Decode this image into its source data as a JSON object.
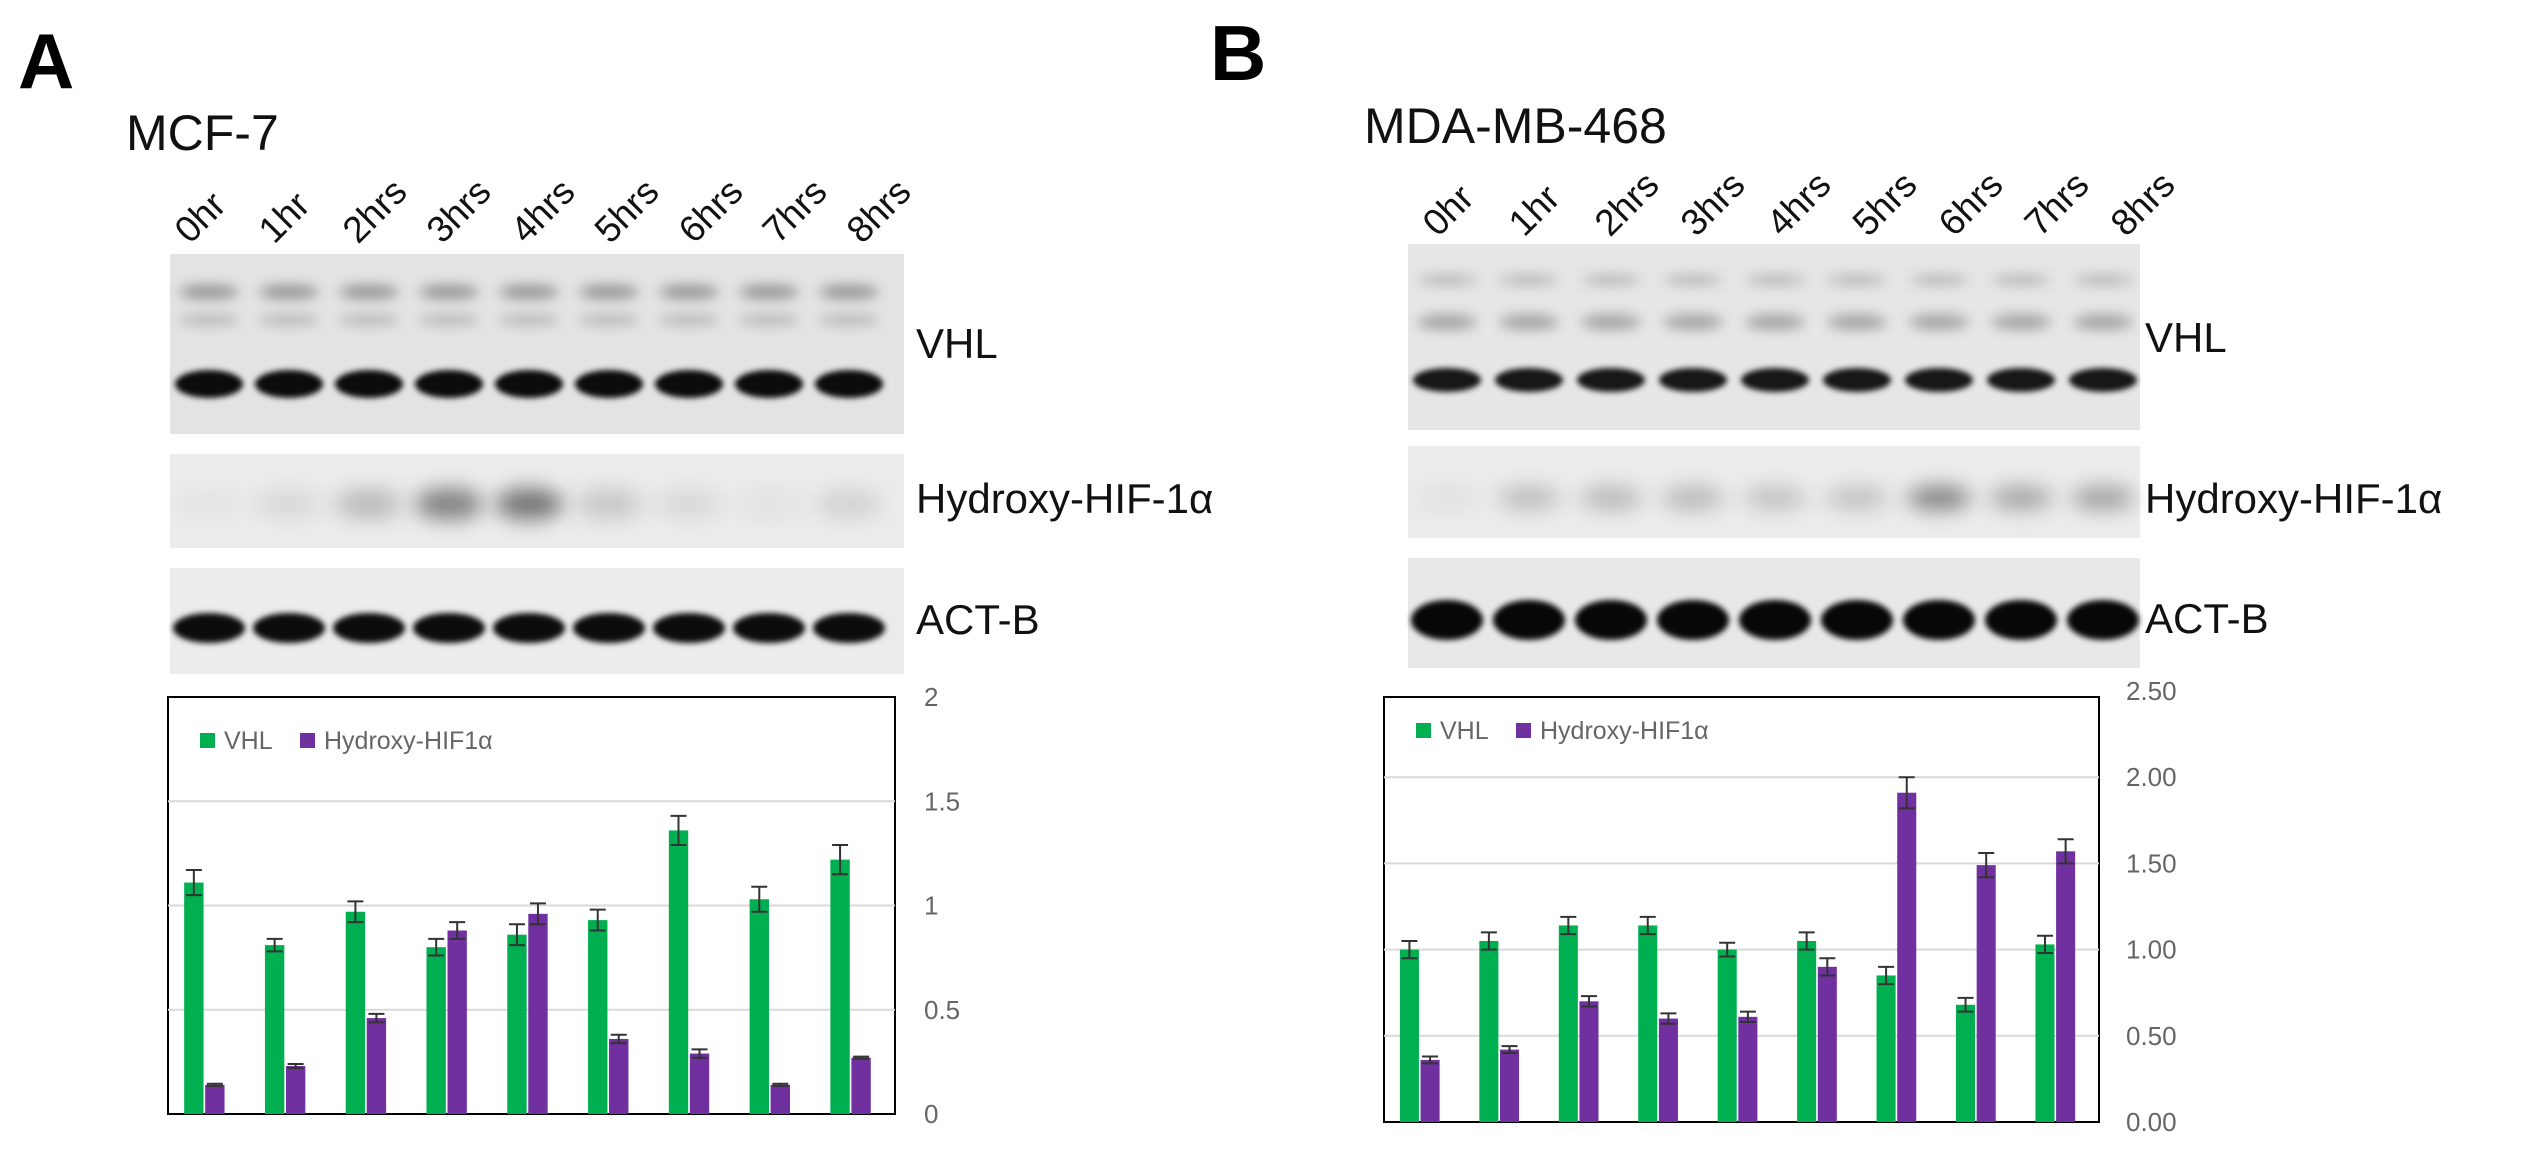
{
  "panels": [
    {
      "letter": "A",
      "cell_line": "MCF-7",
      "lanes": [
        "0hr",
        "1hr",
        "2hrs",
        "3hrs",
        "4hrs",
        "5hrs",
        "6hrs",
        "7hrs",
        "8hrs"
      ],
      "blots": [
        "VHL",
        "Hydroxy-HIF-1α",
        "ACT-B"
      ],
      "legend": [
        "VHL",
        "Hydroxy-HIF1α"
      ],
      "y_ticks": [
        "0",
        "0.5",
        "1",
        "1.5",
        "2"
      ]
    },
    {
      "letter": "B",
      "cell_line": "MDA-MB-468",
      "lanes": [
        "0hr",
        "1hr",
        "2hrs",
        "3hrs",
        "4hrs",
        "5hrs",
        "6hrs",
        "7hrs",
        "8hrs"
      ],
      "blots": [
        "VHL",
        "Hydroxy-HIF-1α",
        "ACT-B"
      ],
      "legend": [
        "VHL",
        "Hydroxy-HIF1α"
      ],
      "y_ticks": [
        "0.00",
        "0.50",
        "1.00",
        "1.50",
        "2.00",
        "2.50"
      ]
    }
  ],
  "colors": {
    "vhl": "#00b050",
    "hif": "#7030a0",
    "error_bar": "#333333",
    "grid": "#d9d9d9"
  },
  "chart_data": [
    {
      "type": "bar",
      "categories": [
        "0hr",
        "1hr",
        "2hrs",
        "3hrs",
        "4hrs",
        "5hrs",
        "6hrs",
        "7hrs",
        "8hrs"
      ],
      "series": [
        {
          "name": "VHL",
          "values": [
            1.11,
            0.81,
            0.97,
            0.8,
            0.86,
            0.93,
            1.36,
            1.03,
            1.22
          ],
          "errors": [
            0.06,
            0.03,
            0.05,
            0.04,
            0.05,
            0.05,
            0.07,
            0.06,
            0.07
          ]
        },
        {
          "name": "Hydroxy-HIF1α",
          "values": [
            0.14,
            0.23,
            0.46,
            0.88,
            0.96,
            0.36,
            0.29,
            0.14,
            0.27
          ],
          "errors": [
            0.005,
            0.01,
            0.02,
            0.04,
            0.05,
            0.02,
            0.02,
            0.005,
            0.005
          ]
        }
      ],
      "ylim": [
        0,
        2
      ],
      "grid": true,
      "legend_position": "top-left"
    },
    {
      "type": "bar",
      "categories": [
        "0hr",
        "1hr",
        "2hrs",
        "3hrs",
        "4hrs",
        "5hrs",
        "6hrs",
        "7hrs",
        "8hrs"
      ],
      "series": [
        {
          "name": "VHL",
          "values": [
            1.0,
            1.05,
            1.14,
            1.14,
            1.0,
            1.05,
            0.85,
            0.68,
            1.03
          ],
          "errors": [
            0.05,
            0.05,
            0.05,
            0.05,
            0.04,
            0.05,
            0.05,
            0.04,
            0.05
          ]
        },
        {
          "name": "Hydroxy-HIF1α",
          "values": [
            0.36,
            0.42,
            0.7,
            0.6,
            0.61,
            0.9,
            1.91,
            1.49,
            1.57
          ],
          "errors": [
            0.02,
            0.02,
            0.03,
            0.03,
            0.03,
            0.05,
            0.09,
            0.07,
            0.07
          ]
        }
      ],
      "ylim": [
        0,
        2.5
      ],
      "grid": true,
      "legend_position": "top-left"
    }
  ]
}
